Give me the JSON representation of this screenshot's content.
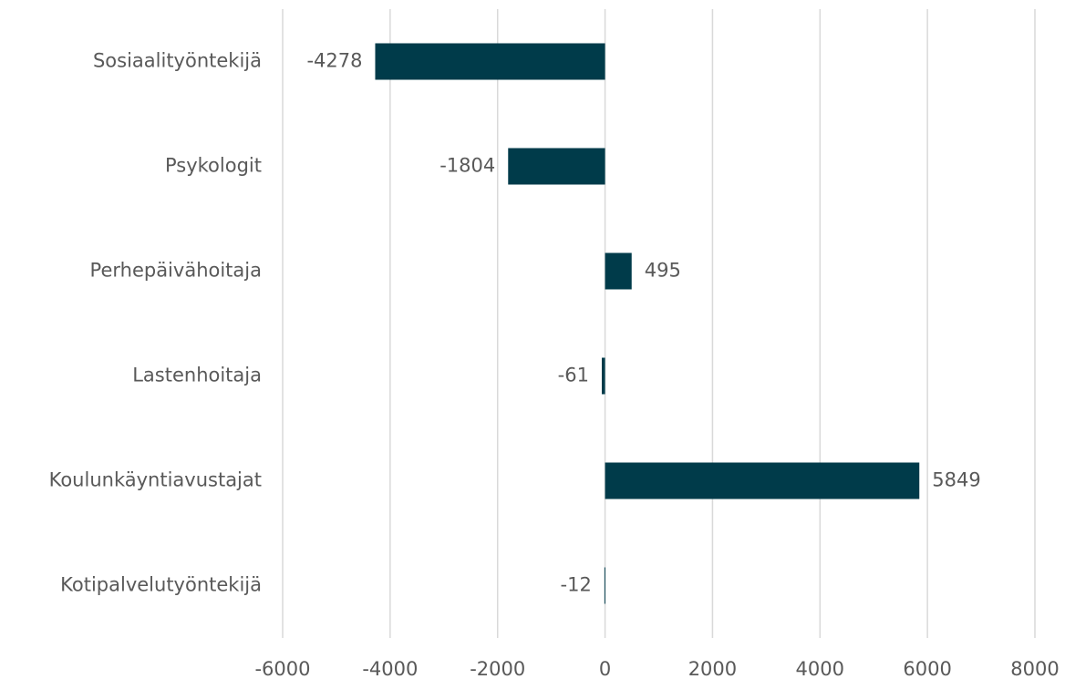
{
  "chart_data": {
    "type": "bar",
    "categories": [
      "Sosiaalityöntekijä",
      "Psykologit",
      "Perhepäivähoitaja",
      "Lastenhoitaja",
      "Koulunkäyntiavustajat",
      "Kotipalvelutyöntekijä"
    ],
    "values": [
      -4278,
      -1804,
      495,
      -61,
      5849,
      -12
    ],
    "color": "#003b4a",
    "xlim": [
      -6000,
      8000
    ],
    "xticks": [
      -6000,
      -4000,
      -2000,
      0,
      2000,
      4000,
      6000,
      8000
    ],
    "grid": true
  }
}
